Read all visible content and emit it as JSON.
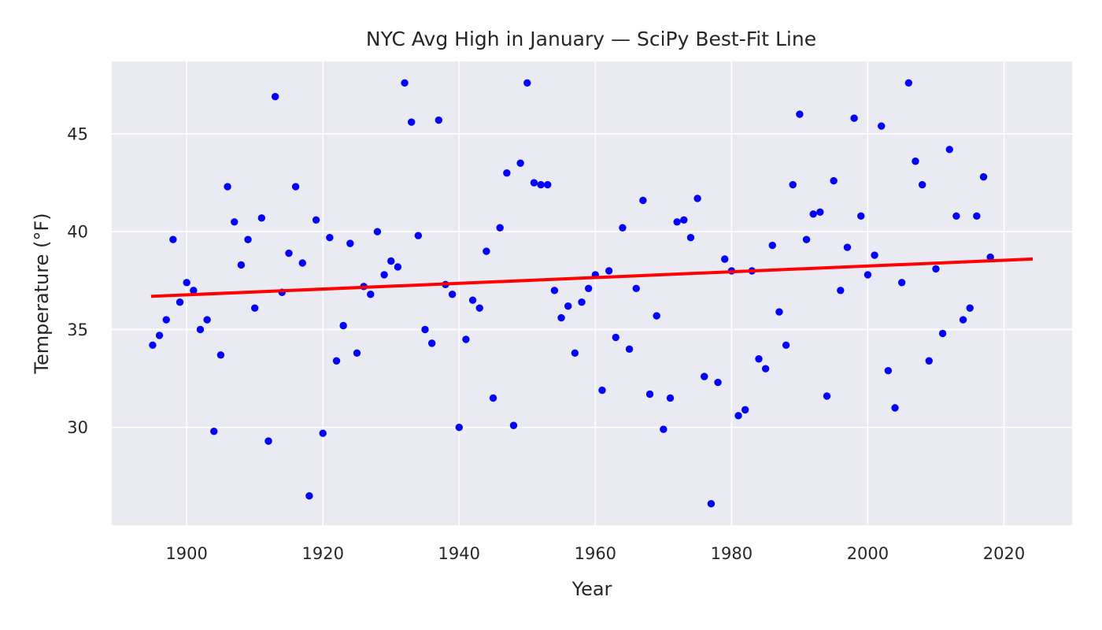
{
  "chart_data": {
    "type": "scatter",
    "title": "NYC Avg High in January — SciPy Best-Fit Line",
    "xlabel": "Year",
    "ylabel": "Temperature (°F)",
    "xlim": [
      1889,
      2030
    ],
    "ylim": [
      25,
      48.7
    ],
    "xticks": [
      1900,
      1920,
      1940,
      1960,
      1980,
      2000,
      2020
    ],
    "yticks": [
      30,
      35,
      40,
      45
    ],
    "grid": true,
    "legend": "none",
    "colors": {
      "background": "#eaeaf2",
      "grid": "#ffffff",
      "points": "#0000ff",
      "fit_line": "#ff0000"
    },
    "series": [
      {
        "type": "scatter",
        "x": [
          1895,
          1896,
          1897,
          1898,
          1899,
          1900,
          1901,
          1902,
          1903,
          1904,
          1905,
          1906,
          1907,
          1908,
          1909,
          1910,
          1911,
          1912,
          1913,
          1914,
          1915,
          1916,
          1917,
          1918,
          1919,
          1920,
          1921,
          1922,
          1923,
          1924,
          1925,
          1926,
          1927,
          1928,
          1929,
          1930,
          1931,
          1932,
          1933,
          1934,
          1935,
          1936,
          1937,
          1938,
          1939,
          1940,
          1941,
          1942,
          1943,
          1944,
          1945,
          1946,
          1947,
          1948,
          1949,
          1950,
          1951,
          1952,
          1953,
          1954,
          1955,
          1956,
          1957,
          1958,
          1959,
          1960,
          1961,
          1962,
          1963,
          1964,
          1965,
          1966,
          1967,
          1968,
          1969,
          1970,
          1971,
          1972,
          1973,
          1974,
          1975,
          1976,
          1977,
          1978,
          1979,
          1980,
          1981,
          1982,
          1983,
          1984,
          1985,
          1986,
          1987,
          1988,
          1989,
          1990,
          1991,
          1992,
          1993,
          1994,
          1995,
          1996,
          1997,
          1998,
          1999,
          2000,
          2001,
          2002,
          2003,
          2004,
          2005,
          2006,
          2007,
          2008,
          2009,
          2010,
          2011,
          2012,
          2013,
          2014,
          2015,
          2016,
          2017,
          2018
        ],
        "y": [
          34.2,
          34.7,
          35.5,
          39.6,
          36.4,
          37.4,
          37.0,
          35.0,
          35.5,
          29.8,
          33.7,
          42.3,
          40.5,
          38.3,
          39.6,
          36.1,
          40.7,
          29.3,
          46.9,
          36.9,
          38.9,
          42.3,
          38.4,
          26.5,
          40.6,
          29.7,
          39.7,
          33.4,
          35.2,
          39.4,
          33.8,
          37.2,
          36.8,
          40.0,
          37.8,
          38.5,
          38.2,
          47.6,
          45.6,
          39.8,
          35.0,
          34.3,
          45.7,
          37.3,
          36.8,
          30.0,
          34.5,
          36.5,
          36.1,
          39.0,
          31.5,
          40.2,
          43.0,
          30.1,
          43.5,
          47.6,
          42.5,
          42.4,
          42.4,
          37.0,
          35.6,
          36.2,
          33.8,
          36.4,
          37.1,
          37.8,
          31.9,
          38.0,
          34.6,
          40.2,
          34.0,
          37.1,
          41.6,
          31.7,
          35.7,
          29.9,
          31.5,
          40.5,
          40.6,
          39.7,
          41.7,
          32.6,
          26.1,
          32.3,
          38.6,
          38.0,
          30.6,
          30.9,
          38.0,
          33.5,
          33.0,
          39.3,
          35.9,
          34.2,
          42.4,
          46.0,
          39.6,
          40.9,
          41.0,
          31.6,
          42.6,
          37.0,
          39.2,
          45.8,
          40.8,
          37.8,
          38.8,
          45.4,
          32.9,
          31.0,
          37.4,
          47.6,
          43.6,
          42.4,
          33.4,
          38.1,
          34.8,
          44.2,
          40.8,
          35.5,
          36.1,
          40.8,
          42.8,
          38.7
        ]
      },
      {
        "type": "line",
        "x": [
          1895,
          2024
        ],
        "y": [
          36.7,
          38.6
        ]
      }
    ]
  }
}
